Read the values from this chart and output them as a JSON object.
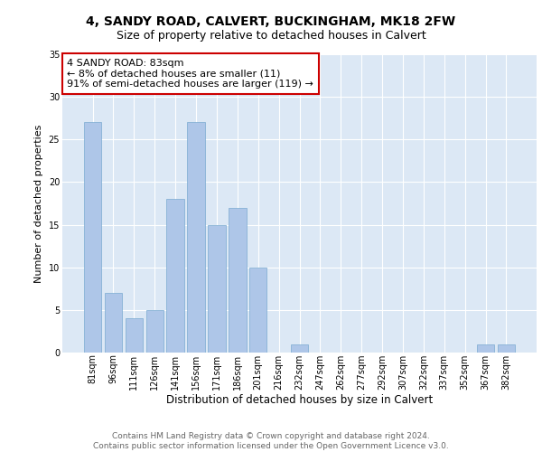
{
  "title1": "4, SANDY ROAD, CALVERT, BUCKINGHAM, MK18 2FW",
  "title2": "Size of property relative to detached houses in Calvert",
  "xlabel": "Distribution of detached houses by size in Calvert",
  "ylabel": "Number of detached properties",
  "categories": [
    "81sqm",
    "96sqm",
    "111sqm",
    "126sqm",
    "141sqm",
    "156sqm",
    "171sqm",
    "186sqm",
    "201sqm",
    "216sqm",
    "232sqm",
    "247sqm",
    "262sqm",
    "277sqm",
    "292sqm",
    "307sqm",
    "322sqm",
    "337sqm",
    "352sqm",
    "367sqm",
    "382sqm"
  ],
  "values": [
    27,
    7,
    4,
    5,
    18,
    27,
    15,
    17,
    10,
    0,
    1,
    0,
    0,
    0,
    0,
    0,
    0,
    0,
    0,
    1,
    1
  ],
  "bar_color": "#aec6e8",
  "bar_edge_color": "#7aaad0",
  "annotation_text": "4 SANDY ROAD: 83sqm\n← 8% of detached houses are smaller (11)\n91% of semi-detached houses are larger (119) →",
  "annotation_box_color": "#ffffff",
  "annotation_box_edge_color": "#cc0000",
  "ylim": [
    0,
    35
  ],
  "yticks": [
    0,
    5,
    10,
    15,
    20,
    25,
    30,
    35
  ],
  "background_color": "#dce8f5",
  "grid_color": "#ffffff",
  "footer_text": "Contains HM Land Registry data © Crown copyright and database right 2024.\nContains public sector information licensed under the Open Government Licence v3.0.",
  "title1_fontsize": 10,
  "title2_fontsize": 9,
  "xlabel_fontsize": 8.5,
  "ylabel_fontsize": 8,
  "tick_fontsize": 7,
  "annotation_fontsize": 8,
  "footer_fontsize": 6.5
}
